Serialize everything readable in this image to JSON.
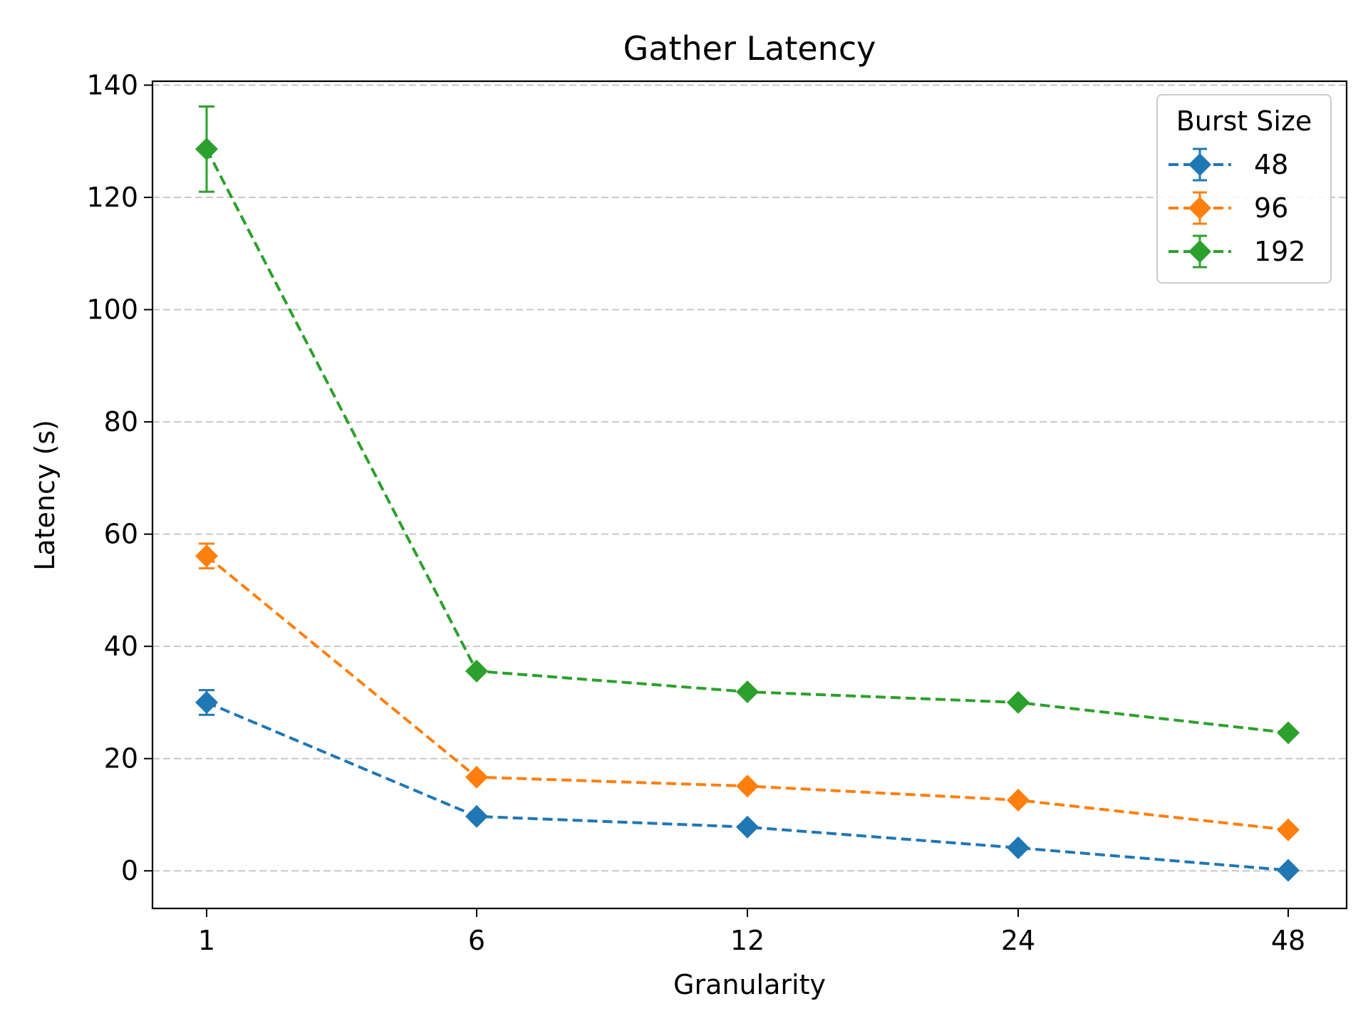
{
  "chart_data": {
    "type": "line",
    "title": "Gather Latency",
    "xlabel": "Granularity",
    "ylabel": "Latency (s)",
    "x_categories": [
      "1",
      "6",
      "12",
      "24",
      "48"
    ],
    "ylim": [
      -6.7,
      140.7
    ],
    "yticks": [
      0,
      20,
      40,
      60,
      80,
      100,
      120,
      140
    ],
    "grid": "horizontal dashed",
    "legend": {
      "title": "Burst Size",
      "placement": "top-right"
    },
    "marker": "diamond",
    "linestyle": "dashed",
    "series": [
      {
        "name": "48",
        "color": "#1f77b4",
        "values": [
          30.0,
          9.7,
          7.8,
          4.1,
          0.1
        ],
        "errors": [
          2.2,
          0.3,
          0.3,
          0.3,
          0.2
        ]
      },
      {
        "name": "96",
        "color": "#ff7f0e",
        "values": [
          56.1,
          16.7,
          15.1,
          12.6,
          7.3
        ],
        "errors": [
          2.2,
          0.3,
          0.3,
          0.3,
          0.3
        ]
      },
      {
        "name": "192",
        "color": "#2ca02c",
        "values": [
          128.6,
          35.6,
          31.9,
          30.0,
          24.6
        ],
        "errors": [
          7.6,
          0.3,
          0.3,
          0.3,
          0.3
        ]
      }
    ]
  }
}
